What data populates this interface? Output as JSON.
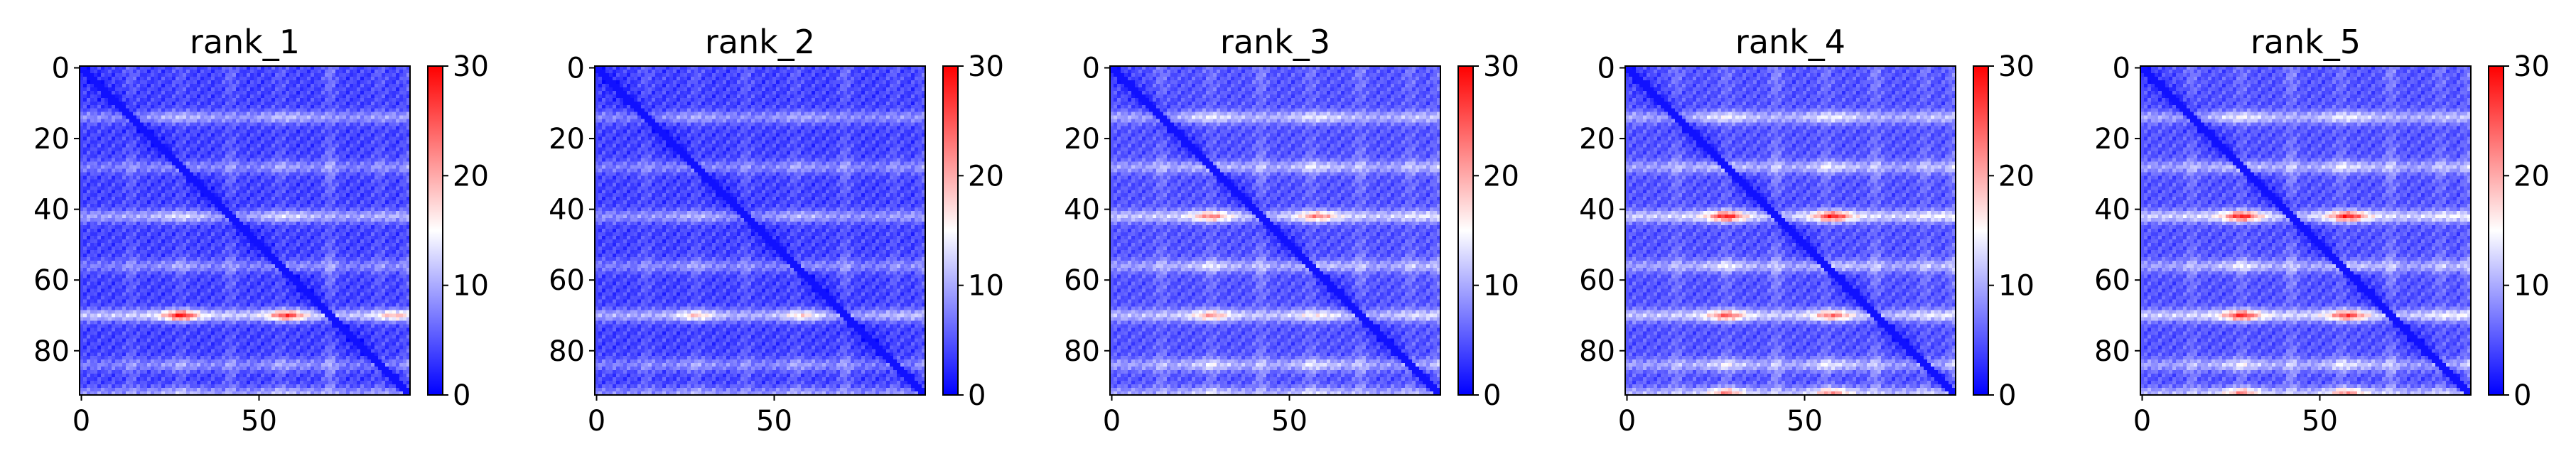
{
  "chart_data": [
    {
      "type": "heatmap",
      "title": "rank_1",
      "x_ticks": [
        "0",
        "50"
      ],
      "y_ticks": [
        "0",
        "20",
        "40",
        "60",
        "80"
      ],
      "colorbar": {
        "ticks": [
          "0",
          "10",
          "20",
          "30"
        ],
        "range": [
          0,
          30
        ],
        "colormap": "bwr"
      },
      "n": 93,
      "base": 4,
      "diag": 1,
      "rows": [
        {
          "y": 70,
          "v": 14
        },
        {
          "y": 42,
          "v": 10
        },
        {
          "y": 14,
          "v": 8
        },
        {
          "y": 28,
          "v": 6
        },
        {
          "y": 56,
          "v": 6
        },
        {
          "y": 84,
          "v": 6
        },
        {
          "y": 92,
          "v": 8
        }
      ],
      "cols": [
        {
          "x": 28,
          "v": 1.6
        },
        {
          "x": 58,
          "v": 1.6
        },
        {
          "x": 88,
          "v": 1.2
        }
      ],
      "hot": [
        {
          "x": 28,
          "y": 70,
          "v": 22
        },
        {
          "x": 58,
          "y": 70,
          "v": 20
        },
        {
          "x": 88,
          "y": 70,
          "v": 16
        }
      ]
    },
    {
      "type": "heatmap",
      "title": "rank_2",
      "x_ticks": [
        "0",
        "50"
      ],
      "y_ticks": [
        "0",
        "20",
        "40",
        "60",
        "80"
      ],
      "colorbar": {
        "ticks": [
          "0",
          "10",
          "20",
          "30"
        ],
        "range": [
          0,
          30
        ],
        "colormap": "bwr"
      },
      "n": 93,
      "base": 4,
      "diag": 1,
      "rows": [
        {
          "y": 70,
          "v": 11
        },
        {
          "y": 42,
          "v": 8
        },
        {
          "y": 14,
          "v": 7
        },
        {
          "y": 28,
          "v": 6
        },
        {
          "y": 56,
          "v": 6
        },
        {
          "y": 84,
          "v": 6
        },
        {
          "y": 92,
          "v": 7
        }
      ],
      "cols": [
        {
          "x": 28,
          "v": 1.5
        },
        {
          "x": 58,
          "v": 1.5
        },
        {
          "x": 88,
          "v": 1.2
        }
      ],
      "hot": [
        {
          "x": 28,
          "y": 70,
          "v": 15
        },
        {
          "x": 58,
          "y": 70,
          "v": 14
        }
      ]
    },
    {
      "type": "heatmap",
      "title": "rank_3",
      "x_ticks": [
        "0",
        "50"
      ],
      "y_ticks": [
        "0",
        "20",
        "40",
        "60",
        "80"
      ],
      "colorbar": {
        "ticks": [
          "0",
          "10",
          "20",
          "30"
        ],
        "range": [
          0,
          30
        ],
        "colormap": "bwr"
      },
      "n": 93,
      "base": 5,
      "diag": 1,
      "rows": [
        {
          "y": 42,
          "v": 12
        },
        {
          "y": 70,
          "v": 11
        },
        {
          "y": 14,
          "v": 9
        },
        {
          "y": 28,
          "v": 8
        },
        {
          "y": 56,
          "v": 8
        },
        {
          "y": 84,
          "v": 8
        },
        {
          "y": 92,
          "v": 8
        }
      ],
      "cols": [
        {
          "x": 28,
          "v": 1.7
        },
        {
          "x": 58,
          "v": 1.7
        },
        {
          "x": 88,
          "v": 1.3
        }
      ],
      "hot": [
        {
          "x": 28,
          "y": 42,
          "v": 16
        },
        {
          "x": 58,
          "y": 42,
          "v": 16
        },
        {
          "x": 28,
          "y": 70,
          "v": 15
        }
      ]
    },
    {
      "type": "heatmap",
      "title": "rank_4",
      "x_ticks": [
        "0",
        "50"
      ],
      "y_ticks": [
        "0",
        "20",
        "40",
        "60",
        "80"
      ],
      "colorbar": {
        "ticks": [
          "0",
          "10",
          "20",
          "30"
        ],
        "range": [
          0,
          30
        ],
        "colormap": "bwr"
      },
      "n": 93,
      "base": 5,
      "diag": 1,
      "rows": [
        {
          "y": 42,
          "v": 13
        },
        {
          "y": 70,
          "v": 12
        },
        {
          "y": 14,
          "v": 9
        },
        {
          "y": 28,
          "v": 8
        },
        {
          "y": 56,
          "v": 8
        },
        {
          "y": 84,
          "v": 8
        },
        {
          "y": 92,
          "v": 10
        }
      ],
      "cols": [
        {
          "x": 28,
          "v": 1.8
        },
        {
          "x": 58,
          "v": 1.8
        },
        {
          "x": 88,
          "v": 1.3
        }
      ],
      "hot": [
        {
          "x": 28,
          "y": 42,
          "v": 20
        },
        {
          "x": 58,
          "y": 42,
          "v": 20
        },
        {
          "x": 28,
          "y": 70,
          "v": 17
        },
        {
          "x": 58,
          "y": 70,
          "v": 16
        },
        {
          "x": 28,
          "y": 92,
          "v": 16
        },
        {
          "x": 58,
          "y": 92,
          "v": 16
        }
      ]
    },
    {
      "type": "heatmap",
      "title": "rank_5",
      "x_ticks": [
        "0",
        "50"
      ],
      "y_ticks": [
        "0",
        "20",
        "40",
        "60",
        "80"
      ],
      "colorbar": {
        "ticks": [
          "0",
          "10",
          "20",
          "30"
        ],
        "range": [
          0,
          30
        ],
        "colormap": "bwr"
      },
      "n": 93,
      "base": 5,
      "diag": 1,
      "rows": [
        {
          "y": 42,
          "v": 13
        },
        {
          "y": 70,
          "v": 13
        },
        {
          "y": 14,
          "v": 9
        },
        {
          "y": 28,
          "v": 8
        },
        {
          "y": 56,
          "v": 8
        },
        {
          "y": 84,
          "v": 8
        },
        {
          "y": 92,
          "v": 10
        }
      ],
      "cols": [
        {
          "x": 28,
          "v": 1.8
        },
        {
          "x": 58,
          "v": 1.8
        },
        {
          "x": 88,
          "v": 1.3
        }
      ],
      "hot": [
        {
          "x": 28,
          "y": 42,
          "v": 20
        },
        {
          "x": 58,
          "y": 42,
          "v": 20
        },
        {
          "x": 28,
          "y": 70,
          "v": 19
        },
        {
          "x": 58,
          "y": 70,
          "v": 18
        },
        {
          "x": 28,
          "y": 92,
          "v": 16
        },
        {
          "x": 58,
          "y": 92,
          "v": 16
        }
      ]
    }
  ]
}
